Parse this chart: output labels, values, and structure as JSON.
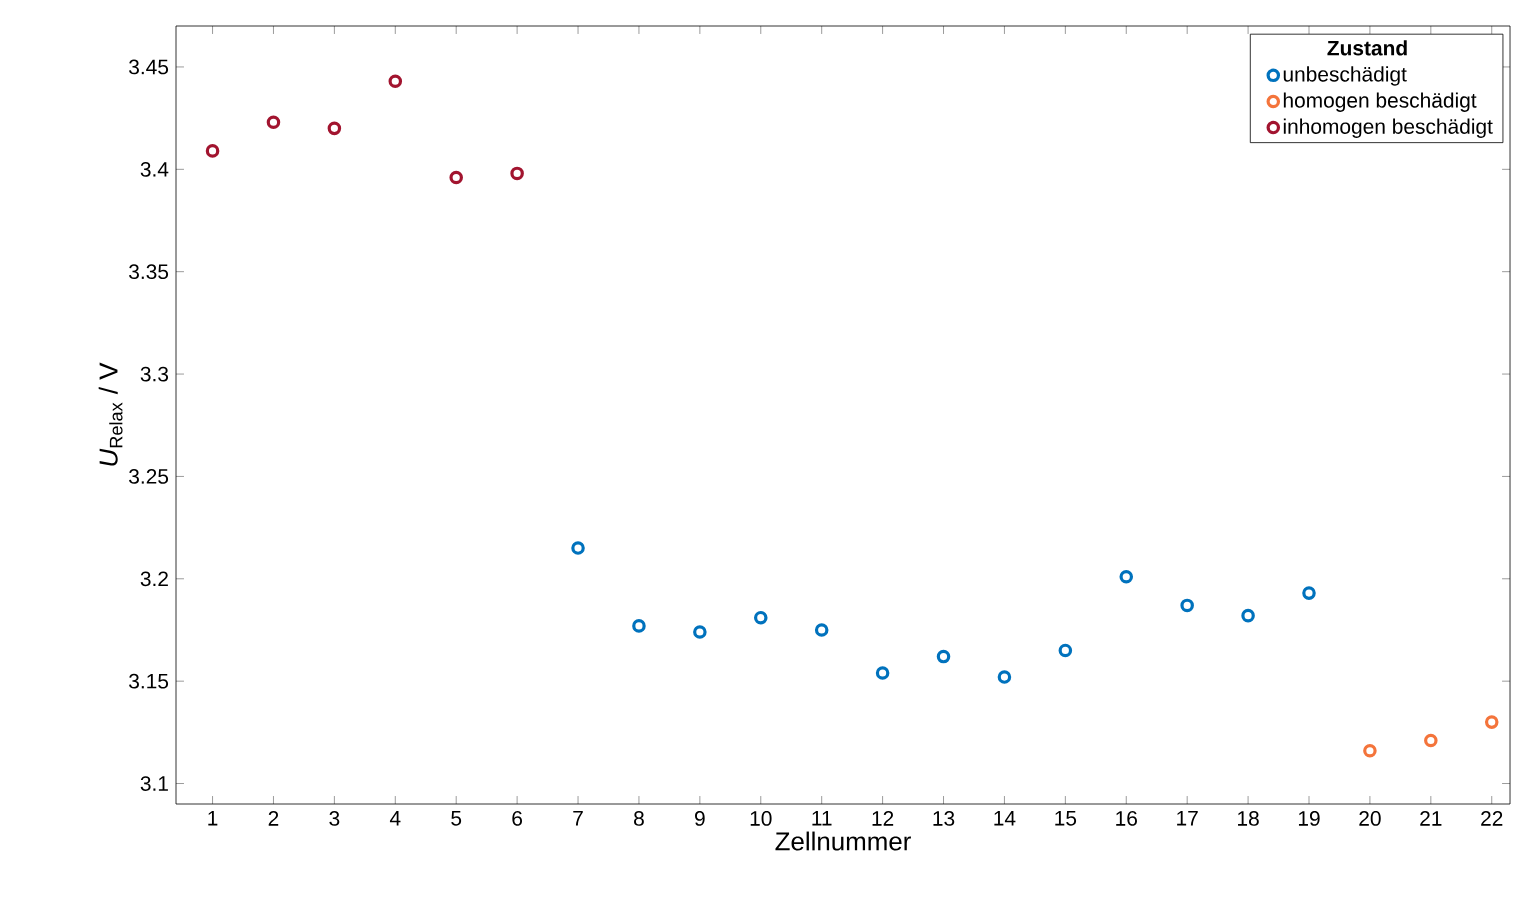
{
  "chart_data": {
    "type": "scatter",
    "xlabel": "Zellnummer",
    "ylabel": "*U*$_{Relax}$ / V",
    "legend_title": "Zustand",
    "series": [
      {
        "name": "unbeschädigt",
        "color": "#0072bd",
        "x": [
          7,
          8,
          9,
          10,
          11,
          12,
          13,
          14,
          15,
          16,
          17,
          18,
          19
        ],
        "values": [
          3.215,
          3.177,
          3.174,
          3.181,
          3.175,
          3.154,
          3.162,
          3.152,
          3.165,
          3.201,
          3.187,
          3.182,
          3.193
        ]
      },
      {
        "name": "homogen beschädigt",
        "color": "#f4743b",
        "x": [
          20,
          21,
          22
        ],
        "values": [
          3.116,
          3.121,
          3.13
        ]
      },
      {
        "name": "inhomogen beschädigt",
        "color": "#a2142f",
        "x": [
          1,
          2,
          3,
          4,
          5,
          6
        ],
        "values": [
          3.409,
          3.423,
          3.42,
          3.443,
          3.396,
          3.398
        ]
      }
    ],
    "xlim": [
      0.4,
      22.3
    ],
    "ylim": [
      3.09,
      3.47
    ],
    "xticks": [
      1,
      2,
      3,
      4,
      5,
      6,
      7,
      8,
      9,
      10,
      11,
      12,
      13,
      14,
      15,
      16,
      17,
      18,
      19,
      20,
      21,
      22
    ],
    "yticks": [
      3.1,
      3.15,
      3.2,
      3.25,
      3.3,
      3.35,
      3.4,
      3.45
    ],
    "marker": "circle",
    "grid": false,
    "legend": "top right"
  }
}
